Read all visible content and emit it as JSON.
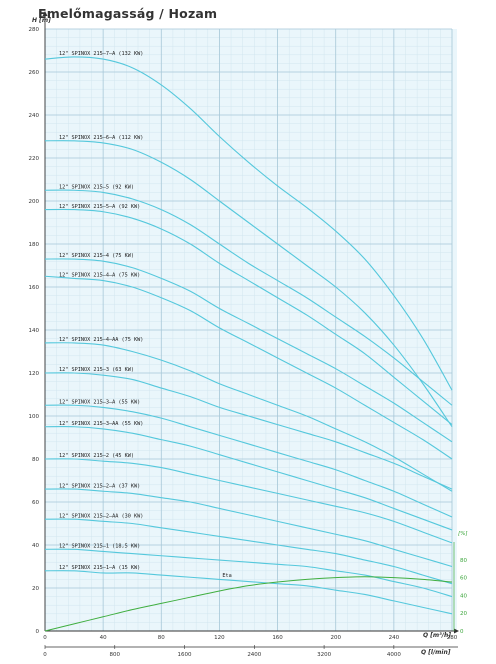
{
  "title": "Emelőmagasság / Hozam",
  "chart_data": {
    "type": "line",
    "ylabel": "H [m]",
    "xlabel": "Q [m³/h]",
    "xlabel2": "Q [l/min]",
    "y2label": "[%]",
    "xlim": [
      0,
      280
    ],
    "ylim": [
      0,
      280
    ],
    "x_ticks": [
      "0",
      "40",
      "80",
      "120",
      "160",
      "200",
      "240",
      "280"
    ],
    "x2_ticks": [
      "0",
      "800",
      "1600",
      "2400",
      "3200",
      "4000"
    ],
    "x2_tick_values": [
      0,
      800,
      1600,
      2400,
      3200,
      4000
    ],
    "y_ticks": [
      "0",
      "20",
      "40",
      "60",
      "80",
      "100",
      "120",
      "140",
      "160",
      "180",
      "200",
      "220",
      "240",
      "260",
      "280"
    ],
    "y2_ticks": [
      "0",
      "20",
      "40",
      "60",
      "80"
    ],
    "y2_tick_values": [
      0,
      20,
      40,
      60,
      80
    ],
    "y2lim": [
      0,
      100
    ],
    "grid": true,
    "colors": {
      "curve": "#55c8dc",
      "eta": "#3fae3f",
      "grid_major": "#a8c8d8",
      "grid_minor": "#d2e6ef",
      "background": "#eaf6fb"
    },
    "series": [
      {
        "name": "12\" SPINOX 215–7–A (132 KW)",
        "x": [
          0,
          20,
          40,
          60,
          80,
          100,
          120,
          140,
          160,
          180,
          200,
          220,
          240,
          260,
          280
        ],
        "y": [
          266,
          267,
          266,
          262,
          254,
          243,
          230,
          218,
          207,
          197,
          186,
          173,
          156,
          136,
          112
        ]
      },
      {
        "name": "12\" SPINOX 215–6–A (112 KW)",
        "x": [
          0,
          20,
          40,
          60,
          80,
          100,
          120,
          140,
          160,
          180,
          200,
          220,
          240,
          260,
          280
        ],
        "y": [
          228,
          228,
          227,
          224,
          218,
          210,
          200,
          190,
          180,
          170,
          160,
          148,
          133,
          115,
          95
        ]
      },
      {
        "name": "12\" SPINOX 215–5 (92 KW)",
        "x": [
          0,
          20,
          40,
          60,
          80,
          100,
          120,
          140,
          160,
          180,
          200,
          220,
          240,
          260,
          280
        ],
        "y": [
          205,
          205,
          204,
          201,
          196,
          189,
          180,
          171,
          163,
          155,
          146,
          137,
          127,
          116,
          105
        ]
      },
      {
        "name": "12\" SPINOX 215–5–A (92 KW)",
        "x": [
          0,
          20,
          40,
          60,
          80,
          100,
          120,
          140,
          160,
          180,
          200,
          220,
          240,
          260,
          280
        ],
        "y": [
          196,
          196,
          195,
          192,
          187,
          180,
          171,
          163,
          155,
          147,
          138,
          129,
          118,
          107,
          96
        ]
      },
      {
        "name": "12\" SPINOX 215–4 (75 KW)",
        "x": [
          0,
          20,
          40,
          60,
          80,
          100,
          120,
          140,
          160,
          180,
          200,
          220,
          240,
          260,
          280
        ],
        "y": [
          173,
          173,
          172,
          169,
          164,
          158,
          150,
          143,
          136,
          129,
          122,
          114,
          106,
          97,
          88
        ]
      },
      {
        "name": "12\" SPINOX 215–4–A (75 KW)",
        "x": [
          0,
          20,
          40,
          60,
          80,
          100,
          120,
          140,
          160,
          180,
          200,
          220,
          240,
          260,
          280
        ],
        "y": [
          165,
          164,
          163,
          160,
          155,
          149,
          141,
          134,
          127,
          120,
          113,
          105,
          97,
          89,
          80
        ]
      },
      {
        "name": "12\" SPINOX 215–4–AA (75 KW)",
        "x": [
          0,
          20,
          40,
          60,
          80,
          100,
          120,
          140,
          160,
          180,
          200,
          220,
          240,
          260,
          280
        ],
        "y": [
          134,
          134,
          133,
          130,
          126,
          121,
          115,
          110,
          105,
          100,
          94,
          88,
          81,
          73,
          65
        ]
      },
      {
        "name": "12\" SPINOX 215–3 (63 KW)",
        "x": [
          0,
          20,
          40,
          60,
          80,
          100,
          120,
          140,
          160,
          180,
          200,
          220,
          240,
          260,
          280
        ],
        "y": [
          120,
          120,
          119,
          117,
          113,
          109,
          104,
          100,
          96,
          92,
          88,
          83,
          78,
          72,
          66
        ]
      },
      {
        "name": "12\" SPINOX 215–3–A (55 KW)",
        "x": [
          0,
          20,
          40,
          60,
          80,
          100,
          120,
          140,
          160,
          180,
          200,
          220,
          240,
          260,
          280
        ],
        "y": [
          105,
          105,
          104,
          102,
          99,
          95,
          91,
          87,
          83,
          79,
          75,
          70,
          65,
          59,
          53
        ]
      },
      {
        "name": "12\" SPINOX 215–3–AA (55 KW)",
        "x": [
          0,
          20,
          40,
          60,
          80,
          100,
          120,
          140,
          160,
          180,
          200,
          220,
          240,
          260,
          280
        ],
        "y": [
          95,
          95,
          94,
          92,
          89,
          86,
          82,
          78,
          74,
          70,
          66,
          62,
          57,
          52,
          47
        ]
      },
      {
        "name": "12\" SPINOX 215–2 (45 KW)",
        "x": [
          0,
          20,
          40,
          60,
          80,
          100,
          120,
          140,
          160,
          180,
          200,
          220,
          240,
          260,
          280
        ],
        "y": [
          80,
          80,
          79,
          78,
          76,
          73,
          70,
          67,
          64,
          61,
          58,
          55,
          51,
          46,
          41
        ]
      },
      {
        "name": "12\" SPINOX 215–2–A (37 KW)",
        "x": [
          0,
          20,
          40,
          60,
          80,
          100,
          120,
          140,
          160,
          180,
          200,
          220,
          240,
          260,
          280
        ],
        "y": [
          66,
          66,
          65,
          64,
          62,
          60,
          57,
          54,
          51,
          48,
          45,
          42,
          38,
          34,
          30
        ]
      },
      {
        "name": "12\" SPINOX 215–2–AA (30 KW)",
        "x": [
          0,
          20,
          40,
          60,
          80,
          100,
          120,
          140,
          160,
          180,
          200,
          220,
          240,
          260,
          280
        ],
        "y": [
          52,
          52,
          51,
          50,
          48,
          46,
          44,
          42,
          40,
          38,
          36,
          33,
          30,
          26,
          22
        ]
      },
      {
        "name": "12\" SPINOX 215–1 (18,5 KW)",
        "x": [
          0,
          20,
          40,
          60,
          80,
          100,
          120,
          140,
          160,
          180,
          200,
          220,
          240,
          260,
          280
        ],
        "y": [
          38,
          38,
          37,
          36,
          35,
          34,
          33,
          32,
          31,
          30,
          28,
          26,
          23,
          20,
          16
        ]
      },
      {
        "name": "12\" SPINOX 215–1–A (15 KW)",
        "x": [
          0,
          20,
          40,
          60,
          80,
          100,
          120,
          140,
          160,
          180,
          200,
          220,
          240,
          260,
          280
        ],
        "y": [
          28,
          28,
          27,
          27,
          26,
          25,
          24,
          23,
          22,
          21,
          19,
          17,
          14,
          11,
          8
        ]
      }
    ],
    "eta": {
      "name": "Eta",
      "x": [
        0,
        20,
        40,
        60,
        80,
        100,
        120,
        140,
        160,
        180,
        200,
        220,
        240,
        260,
        280
      ],
      "y": [
        0,
        8,
        16,
        24,
        31,
        38,
        45,
        51,
        55,
        58,
        60,
        61,
        60,
        58,
        55
      ]
    }
  }
}
